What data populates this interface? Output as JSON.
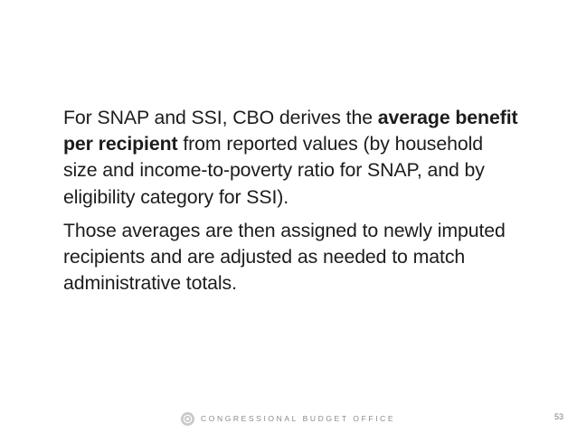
{
  "slide": {
    "paragraphs": [
      {
        "segments": [
          {
            "text": "For SNAP and SSI, CBO derives the ",
            "bold": false
          },
          {
            "text": "average benefit per recipient",
            "bold": true
          },
          {
            "text": " from reported values (by household size and income-to-poverty ratio for SNAP, and by eligibility category for SSI).",
            "bold": false
          }
        ]
      },
      {
        "segments": [
          {
            "text": "Those averages are then assigned to newly imputed recipients and are adjusted as needed to match administrative totals.",
            "bold": false
          }
        ]
      }
    ]
  },
  "footer": {
    "organization": "CONGRESSIONAL BUDGET OFFICE",
    "page_number": "53",
    "logo_icon": "cbo-seal-icon"
  },
  "colors": {
    "text": "#1c1c1c",
    "footer_text": "#8a8a8a",
    "logo": "#c9c9c9"
  }
}
